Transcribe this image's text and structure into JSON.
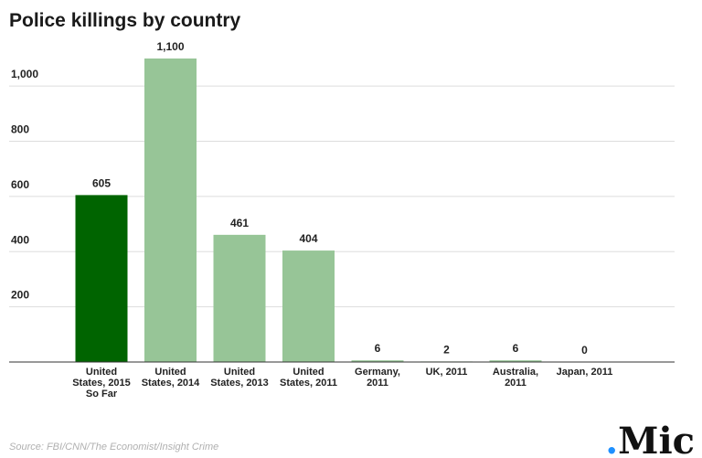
{
  "chart_data": {
    "type": "bar",
    "title": "Police killings by country",
    "categories": [
      [
        "United",
        "States, 2015",
        "So Far"
      ],
      [
        "United",
        "States, 2014"
      ],
      [
        "United",
        "States, 2013"
      ],
      [
        "United",
        "States, 2011"
      ],
      [
        "Germany,",
        "2011"
      ],
      [
        "UK, 2011"
      ],
      [
        "Australia,",
        "2011"
      ],
      [
        "Japan, 2011"
      ]
    ],
    "values": [
      605,
      1100,
      461,
      404,
      6,
      2,
      6,
      0
    ],
    "value_labels": [
      "605",
      "1,100",
      "461",
      "404",
      "6",
      "2",
      "6",
      "0"
    ],
    "highlight_index": 0,
    "colors": {
      "highlight": "#006400",
      "default": "#97c597",
      "gridline": "#dddddd",
      "baseline": "#333333"
    },
    "ylim": [
      0,
      1100
    ],
    "yticks": [
      200,
      400,
      600,
      800,
      1000
    ],
    "ytick_labels": [
      "200",
      "400",
      "600",
      "800",
      "1,000"
    ],
    "grid": true,
    "legend": "none",
    "xlabel": "",
    "ylabel": ""
  },
  "source": "Source: FBI/CNN/The Economist/Insight Crime",
  "logo_text": ".Mic",
  "colors": {
    "logo_dot": "#1e90ff"
  }
}
